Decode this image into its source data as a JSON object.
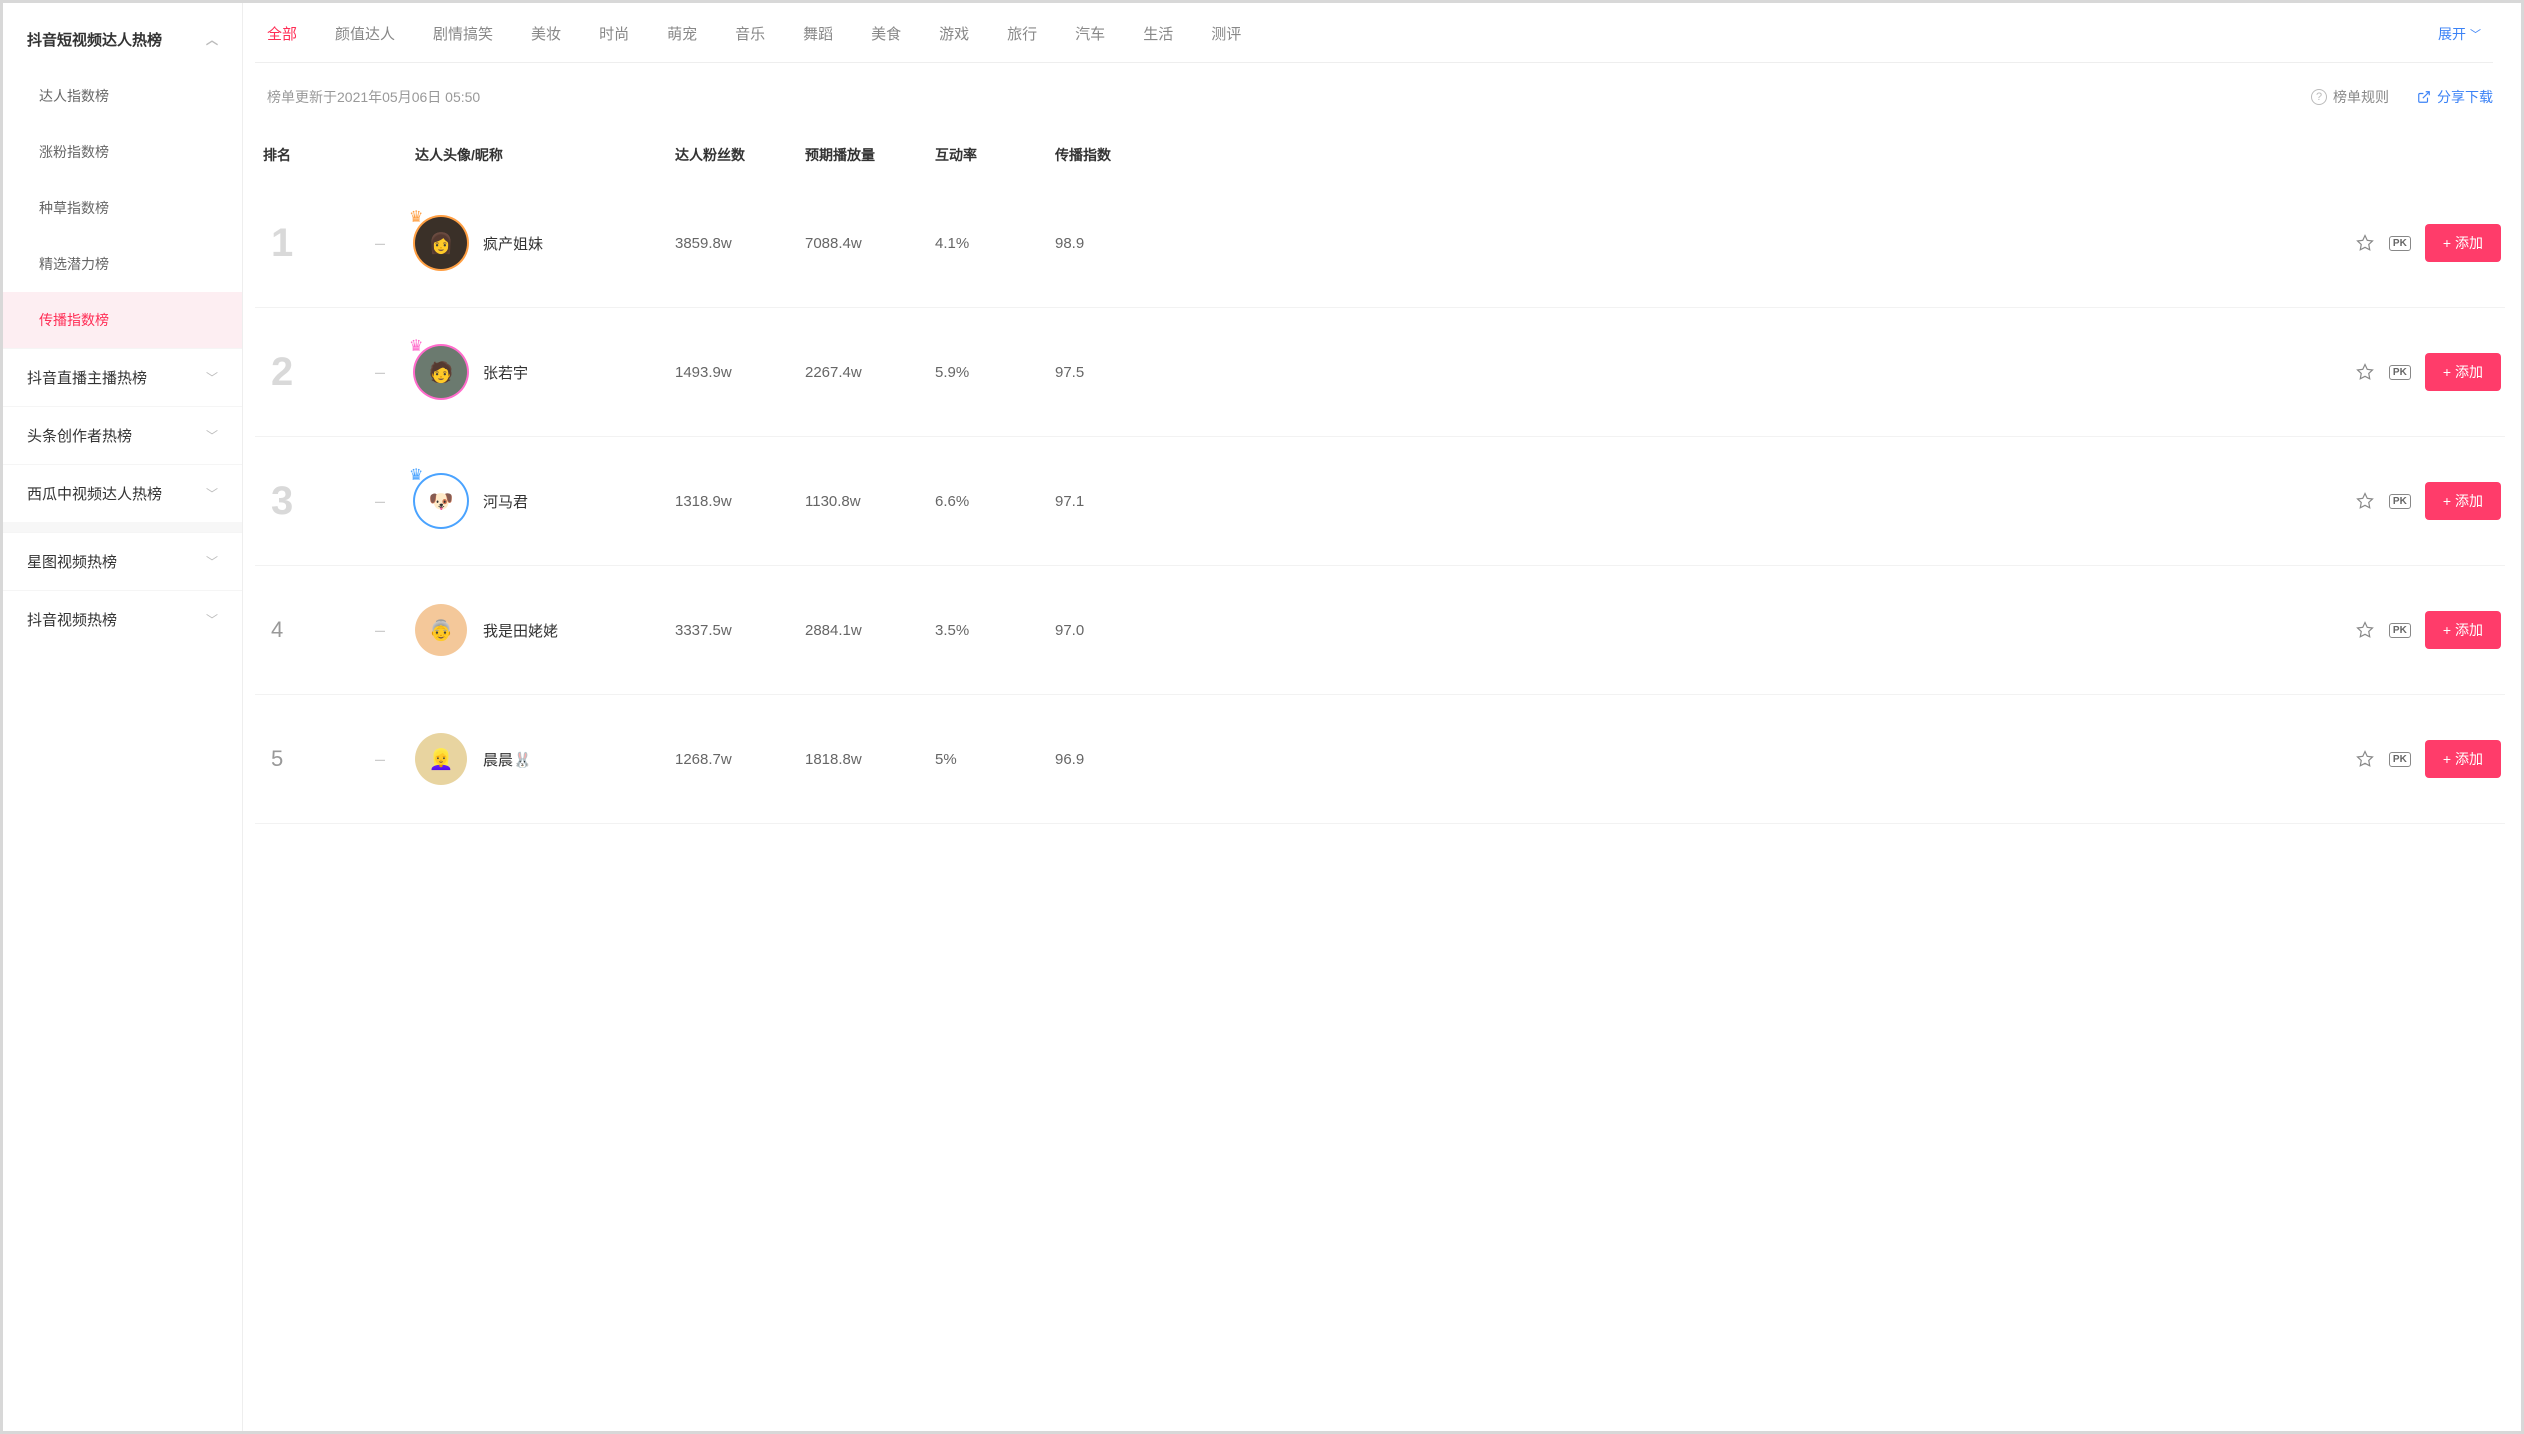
{
  "sidebar": {
    "group_expanded": {
      "title": "抖音短视频达人热榜",
      "items": [
        {
          "label": "达人指数榜",
          "active": false
        },
        {
          "label": "涨粉指数榜",
          "active": false
        },
        {
          "label": "种草指数榜",
          "active": false
        },
        {
          "label": "精选潜力榜",
          "active": false
        },
        {
          "label": "传播指数榜",
          "active": true
        }
      ]
    },
    "groups_collapsed": [
      {
        "label": "抖音直播主播热榜"
      },
      {
        "label": "头条创作者热榜"
      },
      {
        "label": "西瓜中视频达人热榜"
      }
    ],
    "groups_bottom": [
      {
        "label": "星图视频热榜"
      },
      {
        "label": "抖音视频热榜"
      }
    ]
  },
  "categories": {
    "tabs": [
      {
        "label": "全部",
        "active": true
      },
      {
        "label": "颜值达人"
      },
      {
        "label": "剧情搞笑"
      },
      {
        "label": "美妆"
      },
      {
        "label": "时尚"
      },
      {
        "label": "萌宠"
      },
      {
        "label": "音乐"
      },
      {
        "label": "舞蹈"
      },
      {
        "label": "美食"
      },
      {
        "label": "游戏"
      },
      {
        "label": "旅行"
      },
      {
        "label": "汽车"
      },
      {
        "label": "生活"
      },
      {
        "label": "测评"
      }
    ],
    "expand_label": "展开"
  },
  "meta": {
    "update_text": "榜单更新于2021年05月06日 05:50",
    "rules_label": "榜单规则",
    "share_label": "分享下载"
  },
  "table": {
    "headers": {
      "rank": "排名",
      "name": "达人头像/昵称",
      "fans": "达人粉丝数",
      "plays": "预期播放量",
      "interaction": "互动率",
      "index": "传播指数"
    },
    "add_button_label": "添加",
    "pk_label": "PK",
    "rows": [
      {
        "rank": "1",
        "trend": "–",
        "nickname": "疯产姐妹",
        "fans": "3859.8w",
        "plays": "7088.4w",
        "interaction": "4.1%",
        "index": "98.9",
        "avatar_bg": "#3a3028",
        "avatar_emoji": "👩",
        "ring": "orange",
        "crown": true,
        "top": true
      },
      {
        "rank": "2",
        "trend": "–",
        "nickname": "张若宇",
        "fans": "1493.9w",
        "plays": "2267.4w",
        "interaction": "5.9%",
        "index": "97.5",
        "avatar_bg": "#6b7a6f",
        "avatar_emoji": "🧑",
        "ring": "pink",
        "crown": true,
        "top": true
      },
      {
        "rank": "3",
        "trend": "–",
        "nickname": "河马君",
        "fans": "1318.9w",
        "plays": "1130.8w",
        "interaction": "6.6%",
        "index": "97.1",
        "avatar_bg": "#ffffff",
        "avatar_emoji": "🐶",
        "ring": "blue",
        "crown": true,
        "top": true
      },
      {
        "rank": "4",
        "trend": "–",
        "nickname": "我是田姥姥",
        "fans": "3337.5w",
        "plays": "2884.1w",
        "interaction": "3.5%",
        "index": "97.0",
        "avatar_bg": "#f4c89a",
        "avatar_emoji": "👵",
        "ring": "",
        "crown": false,
        "top": false
      },
      {
        "rank": "5",
        "trend": "–",
        "nickname": "晨晨🐰",
        "fans": "1268.7w",
        "plays": "1818.8w",
        "interaction": "5%",
        "index": "96.9",
        "avatar_bg": "#e8d4a0",
        "avatar_emoji": "👱‍♀️",
        "ring": "",
        "crown": false,
        "top": false
      }
    ]
  },
  "colors": {
    "accent": "#ff2d55",
    "button": "#ff3c6a",
    "link_blue": "#3b82f6",
    "sidebar_active_bg": "#fdeef2",
    "text_muted": "#999",
    "border": "#eee"
  }
}
